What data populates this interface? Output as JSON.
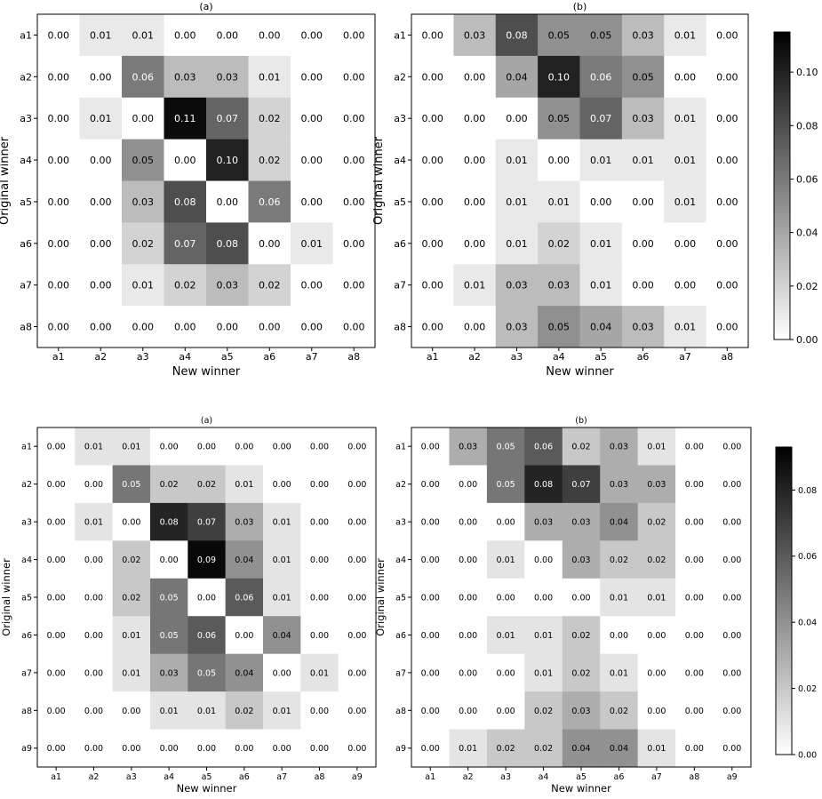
{
  "figure_top": {
    "panels": [
      {
        "title": "(a)",
        "xlabel": "New winner",
        "ylabel": "Original winner",
        "categories": [
          "a1",
          "a2",
          "a3",
          "a4",
          "a5",
          "a6",
          "a7",
          "a8"
        ],
        "values": [
          [
            0.0,
            0.01,
            0.01,
            0.0,
            0.0,
            0.0,
            0.0,
            0.0
          ],
          [
            0.0,
            0.0,
            0.06,
            0.03,
            0.03,
            0.01,
            0.0,
            0.0
          ],
          [
            0.0,
            0.01,
            0.0,
            0.11,
            0.07,
            0.02,
            0.0,
            0.0
          ],
          [
            0.0,
            0.0,
            0.05,
            0.0,
            0.1,
            0.02,
            0.0,
            0.0
          ],
          [
            0.0,
            0.0,
            0.03,
            0.08,
            0.0,
            0.06,
            0.0,
            0.0
          ],
          [
            0.0,
            0.0,
            0.02,
            0.07,
            0.08,
            0.0,
            0.01,
            0.0
          ],
          [
            0.0,
            0.0,
            0.01,
            0.02,
            0.03,
            0.02,
            0.0,
            0.0
          ],
          [
            0.0,
            0.0,
            0.0,
            0.0,
            0.0,
            0.0,
            0.0,
            0.0
          ]
        ]
      },
      {
        "title": "(b)",
        "xlabel": "New winner",
        "ylabel": "Original winner",
        "categories": [
          "a1",
          "a2",
          "a3",
          "a4",
          "a5",
          "a6",
          "a7",
          "a8"
        ],
        "values": [
          [
            0.0,
            0.03,
            0.08,
            0.05,
            0.05,
            0.03,
            0.01,
            0.0
          ],
          [
            0.0,
            0.0,
            0.04,
            0.1,
            0.06,
            0.05,
            0.0,
            0.0
          ],
          [
            0.0,
            0.0,
            0.0,
            0.05,
            0.07,
            0.03,
            0.01,
            0.0
          ],
          [
            0.0,
            0.0,
            0.01,
            0.0,
            0.01,
            0.01,
            0.01,
            0.0
          ],
          [
            0.0,
            0.0,
            0.01,
            0.01,
            0.0,
            0.0,
            0.01,
            0.0
          ],
          [
            0.0,
            0.0,
            0.01,
            0.02,
            0.01,
            0.0,
            0.0,
            0.0
          ],
          [
            0.0,
            0.01,
            0.03,
            0.03,
            0.01,
            0.0,
            0.0,
            0.0
          ],
          [
            0.0,
            0.0,
            0.03,
            0.05,
            0.04,
            0.03,
            0.01,
            0.0
          ]
        ]
      }
    ],
    "colorbar": {
      "vmin": 0.0,
      "vmax": 0.115,
      "ticks": [
        0.0,
        0.02,
        0.04,
        0.06,
        0.08,
        0.1
      ],
      "tick_labels": [
        "0.00",
        "0.02",
        "0.04",
        "0.06",
        "0.08",
        "0.10"
      ]
    }
  },
  "figure_bottom": {
    "panels": [
      {
        "title": "(a)",
        "xlabel": "New winner",
        "ylabel": "Original winner",
        "categories": [
          "a1",
          "a2",
          "a3",
          "a4",
          "a5",
          "a6",
          "a7",
          "a8",
          "a9"
        ],
        "values": [
          [
            0.0,
            0.01,
            0.01,
            0.0,
            0.0,
            0.0,
            0.0,
            0.0,
            0.0
          ],
          [
            0.0,
            0.0,
            0.05,
            0.02,
            0.02,
            0.01,
            0.0,
            0.0,
            0.0
          ],
          [
            0.0,
            0.01,
            0.0,
            0.08,
            0.07,
            0.03,
            0.01,
            0.0,
            0.0
          ],
          [
            0.0,
            0.0,
            0.02,
            0.0,
            0.09,
            0.04,
            0.01,
            0.0,
            0.0
          ],
          [
            0.0,
            0.0,
            0.02,
            0.05,
            0.0,
            0.06,
            0.01,
            0.0,
            0.0
          ],
          [
            0.0,
            0.0,
            0.01,
            0.05,
            0.06,
            0.0,
            0.04,
            0.0,
            0.0
          ],
          [
            0.0,
            0.0,
            0.01,
            0.03,
            0.05,
            0.04,
            0.0,
            0.01,
            0.0
          ],
          [
            0.0,
            0.0,
            0.0,
            0.01,
            0.01,
            0.02,
            0.01,
            0.0,
            0.0
          ],
          [
            0.0,
            0.0,
            0.0,
            0.0,
            0.0,
            0.0,
            0.0,
            0.0,
            0.0
          ]
        ]
      },
      {
        "title": "(b)",
        "xlabel": "New winner",
        "ylabel": "Original winner",
        "categories": [
          "a1",
          "a2",
          "a3",
          "a4",
          "a5",
          "a6",
          "a7",
          "a8",
          "a9"
        ],
        "values": [
          [
            0.0,
            0.03,
            0.05,
            0.06,
            0.02,
            0.03,
            0.01,
            0.0,
            0.0
          ],
          [
            0.0,
            0.0,
            0.05,
            0.08,
            0.07,
            0.03,
            0.03,
            0.0,
            0.0
          ],
          [
            0.0,
            0.0,
            0.0,
            0.03,
            0.03,
            0.04,
            0.02,
            0.0,
            0.0
          ],
          [
            0.0,
            0.0,
            0.01,
            0.0,
            0.03,
            0.02,
            0.02,
            0.0,
            0.0
          ],
          [
            0.0,
            0.0,
            0.0,
            0.0,
            0.0,
            0.01,
            0.01,
            0.0,
            0.0
          ],
          [
            0.0,
            0.0,
            0.01,
            0.01,
            0.02,
            0.0,
            0.0,
            0.0,
            0.0
          ],
          [
            0.0,
            0.0,
            0.0,
            0.01,
            0.02,
            0.01,
            0.0,
            0.0,
            0.0
          ],
          [
            0.0,
            0.0,
            0.0,
            0.02,
            0.03,
            0.02,
            0.0,
            0.0,
            0.0
          ],
          [
            0.0,
            0.01,
            0.02,
            0.02,
            0.04,
            0.04,
            0.01,
            0.0,
            0.0
          ]
        ]
      }
    ],
    "colorbar": {
      "vmin": 0.0,
      "vmax": 0.093,
      "ticks": [
        0.0,
        0.02,
        0.04,
        0.06,
        0.08
      ],
      "tick_labels": [
        "0.00",
        "0.02",
        "0.04",
        "0.06",
        "0.08"
      ]
    }
  },
  "chart_data": [
    {
      "type": "heatmap",
      "title": "(a)",
      "xlabel": "New winner",
      "ylabel": "Original winner",
      "x_categories": [
        "a1",
        "a2",
        "a3",
        "a4",
        "a5",
        "a6",
        "a7",
        "a8"
      ],
      "y_categories": [
        "a1",
        "a2",
        "a3",
        "a4",
        "a5",
        "a6",
        "a7",
        "a8"
      ],
      "colormap": "Greys",
      "color_range": [
        0.0,
        0.115
      ]
    },
    {
      "type": "heatmap",
      "title": "(b)",
      "xlabel": "New winner",
      "ylabel": "Original winner",
      "x_categories": [
        "a1",
        "a2",
        "a3",
        "a4",
        "a5",
        "a6",
        "a7",
        "a8"
      ],
      "y_categories": [
        "a1",
        "a2",
        "a3",
        "a4",
        "a5",
        "a6",
        "a7",
        "a8"
      ],
      "colormap": "Greys",
      "color_range": [
        0.0,
        0.115
      ]
    },
    {
      "type": "heatmap",
      "title": "(a)",
      "xlabel": "New winner",
      "ylabel": "Original winner",
      "x_categories": [
        "a1",
        "a2",
        "a3",
        "a4",
        "a5",
        "a6",
        "a7",
        "a8",
        "a9"
      ],
      "y_categories": [
        "a1",
        "a2",
        "a3",
        "a4",
        "a5",
        "a6",
        "a7",
        "a8",
        "a9"
      ],
      "colormap": "Greys",
      "color_range": [
        0.0,
        0.093
      ]
    },
    {
      "type": "heatmap",
      "title": "(b)",
      "xlabel": "New winner",
      "ylabel": "Original winner",
      "x_categories": [
        "a1",
        "a2",
        "a3",
        "a4",
        "a5",
        "a6",
        "a7",
        "a8",
        "a9"
      ],
      "y_categories": [
        "a1",
        "a2",
        "a3",
        "a4",
        "a5",
        "a6",
        "a7",
        "a8",
        "a9"
      ],
      "colormap": "Greys",
      "color_range": [
        0.0,
        0.093
      ]
    }
  ]
}
